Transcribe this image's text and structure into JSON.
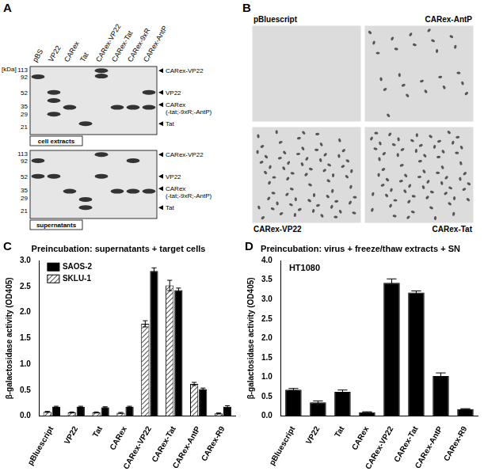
{
  "panels": {
    "A": {
      "letter": "A",
      "unit_label": "[kDa]",
      "markers": [
        113,
        92,
        52,
        35,
        29,
        21
      ],
      "lanes": [
        "pBS",
        "VP22",
        "CARex",
        "Tat",
        "CARex-VP22",
        "CARex-Tat",
        "CARex-9xR",
        "CARex-AntP"
      ],
      "band_labels": [
        [
          "CARex-VP22"
        ],
        [
          "VP22"
        ],
        [
          "CARex",
          "(-tat;-9xR;-AntP)"
        ],
        [
          "Tat"
        ]
      ],
      "blots": [
        "cell extracts",
        "supernatants"
      ]
    },
    "B": {
      "letter": "B",
      "images": [
        "pBluescript",
        "CARex-AntP",
        "CARex-VP22",
        "CARex-Tat"
      ]
    }
  },
  "chart_data": [
    {
      "panel": "C",
      "type": "bar",
      "title": "Preincubation: supernatants + target cells",
      "y_label": "β-galactosidase activity (OD405)",
      "categories": [
        "pBluescript",
        "VP22",
        "Tat",
        "CARex",
        "CARex-VP22",
        "CARex-Tat",
        "CARex-AntP",
        "CARex-R9"
      ],
      "series": [
        {
          "name": "SAOS-2",
          "color": "#000000",
          "values": [
            0.18,
            0.18,
            0.17,
            0.18,
            2.8,
            2.43,
            0.52,
            0.18
          ],
          "errors": [
            0.01,
            0.01,
            0.01,
            0.01,
            0.06,
            0.04,
            0.02,
            0.02
          ]
        },
        {
          "name": "SKLU-1",
          "color": "#606060",
          "line_style": "hatch",
          "values": [
            0.08,
            0.07,
            0.07,
            0.06,
            1.78,
            2.52,
            0.62,
            0.05
          ],
          "errors": [
            0.01,
            0.01,
            0.01,
            0.01,
            0.06,
            0.1,
            0.03,
            0.01
          ]
        }
      ],
      "ylim": [
        0,
        3
      ],
      "yticks": [
        {
          "value": 0,
          "label": "0.0"
        },
        {
          "value": 0.5,
          "label": "0.5"
        },
        {
          "value": 1,
          "label": "1.0"
        },
        {
          "value": 1.5,
          "label": "1.5"
        },
        {
          "value": 2,
          "label": "2.0"
        },
        {
          "value": 2.5,
          "label": "2.5"
        },
        {
          "value": 3,
          "label": "3.0"
        }
      ],
      "grid": false,
      "legend": "upper left"
    },
    {
      "panel": "D",
      "type": "bar",
      "title": "Preincubation: virus + freeze/thaw extracts + SN",
      "y_label": "β-galactosidase activity (OD405)",
      "annotation": "HT1080",
      "categories": [
        "pBluescript",
        "VP22",
        "Tat",
        "CARex",
        "CARex-VP22",
        "CARex-Tat",
        "CARex-AntP",
        "CARex-R9"
      ],
      "values": [
        0.68,
        0.35,
        0.62,
        0.1,
        3.43,
        3.18,
        1.03,
        0.18
      ],
      "errors": [
        0.03,
        0.04,
        0.05,
        0.01,
        0.1,
        0.04,
        0.08,
        0.01
      ],
      "color": "#000000",
      "ylim": [
        0,
        4
      ],
      "yticks": [
        {
          "value": 0,
          "label": "0.0"
        },
        {
          "value": 0.5,
          "label": "0.5"
        },
        {
          "value": 1,
          "label": "1.0"
        },
        {
          "value": 1.5,
          "label": "1.5"
        },
        {
          "value": 2,
          "label": "2.0"
        },
        {
          "value": 2.5,
          "label": "2.5"
        },
        {
          "value": 3,
          "label": "3.0"
        },
        {
          "value": 3.5,
          "label": "3.5"
        },
        {
          "value": 4,
          "label": "4.0"
        }
      ],
      "grid": false
    }
  ]
}
